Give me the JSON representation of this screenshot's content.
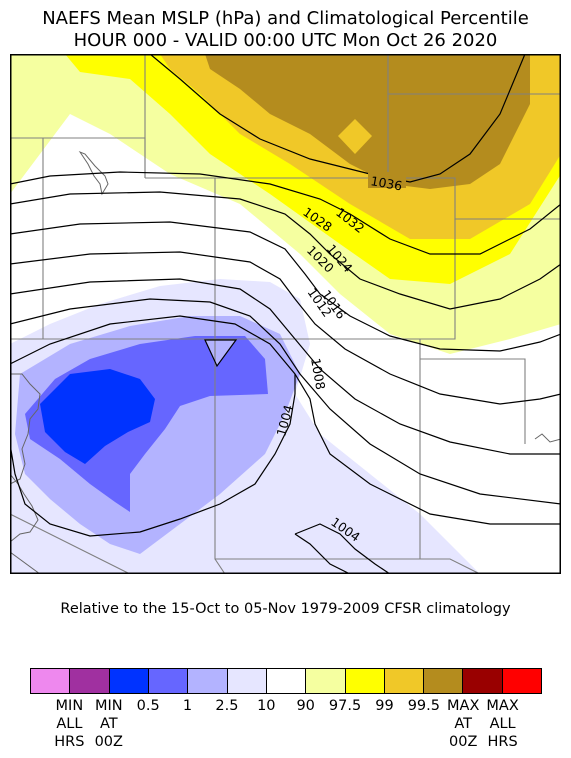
{
  "title": {
    "line1": "NAEFS Mean MSLP (hPa) and Climatological Percentile",
    "line2": "HOUR 000 - VALID 00:00 UTC Mon Oct 26 2020"
  },
  "contour_labels": [
    "1036",
    "1032",
    "1028",
    "1024",
    "1020",
    "1016",
    "1012",
    "1008",
    "1004",
    "1004"
  ],
  "caption": "Relative to the 15-Oct to 05-Nov 1979-2009 CFSR climatology",
  "colorbar": {
    "swatches": [
      "#ee88ee",
      "#a030a0",
      "#0033ff",
      "#6666ff",
      "#b3b3ff",
      "#e6e6ff",
      "#ffffff",
      "#f5ffa0",
      "#ffff00",
      "#f0c828",
      "#b48c1e",
      "#990000",
      "#ff0000"
    ],
    "labels": [
      "MIN\nALL\nHRS",
      "MIN\nAT\n00Z",
      "0.5",
      "1",
      "2.5",
      "10",
      "90",
      "97.5",
      "99",
      "99.5",
      "MAX\nAT\n00Z",
      "MAX\nALL\nHRS"
    ]
  }
}
